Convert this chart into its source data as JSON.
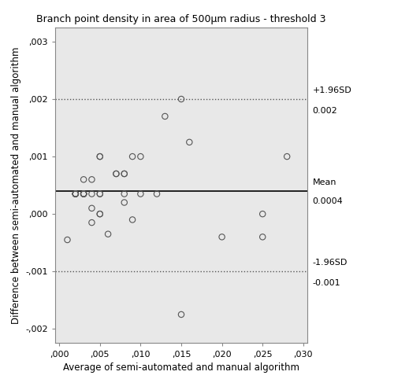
{
  "title": "Branch point density in area of 500μm radius - threshold 3",
  "xlabel": "Average of semi-automated and manual algorithm",
  "ylabel": "Difference between semi-automated and manual algorithm",
  "mean": 0.0004,
  "upper_loa": 0.002,
  "lower_loa": -0.001,
  "xlim": [
    -0.0005,
    0.0305
  ],
  "ylim": [
    -0.00225,
    0.00325
  ],
  "xticks": [
    0.0,
    0.005,
    0.01,
    0.015,
    0.02,
    0.025,
    0.03
  ],
  "yticks": [
    -0.002,
    -0.001,
    0.0,
    0.001,
    0.002,
    0.003
  ],
  "scatter_x": [
    0.001,
    0.002,
    0.002,
    0.002,
    0.002,
    0.002,
    0.003,
    0.003,
    0.003,
    0.003,
    0.003,
    0.003,
    0.004,
    0.004,
    0.004,
    0.004,
    0.005,
    0.005,
    0.005,
    0.005,
    0.005,
    0.005,
    0.006,
    0.007,
    0.007,
    0.008,
    0.008,
    0.008,
    0.008,
    0.009,
    0.009,
    0.01,
    0.01,
    0.012,
    0.013,
    0.015,
    0.015,
    0.016,
    0.02,
    0.025,
    0.025,
    0.028
  ],
  "scatter_y": [
    -0.00045,
    0.00035,
    0.00035,
    0.00035,
    0.00035,
    0.00035,
    0.00035,
    0.00035,
    0.00035,
    0.00035,
    0.00035,
    0.0006,
    0.0006,
    0.00035,
    0.0001,
    -0.00015,
    0.001,
    0.001,
    0.00035,
    0.00035,
    0.0,
    0.0,
    -0.00035,
    0.0007,
    0.0007,
    0.0007,
    0.0007,
    0.00035,
    0.0002,
    0.001,
    -0.0001,
    0.00035,
    0.001,
    0.00035,
    0.0017,
    0.002,
    -0.00175,
    0.00125,
    -0.0004,
    0.0,
    -0.0004,
    0.001
  ],
  "label_upper": "+1.96SD",
  "label_upper_val": "0.002",
  "label_mean": "Mean",
  "label_mean_val": "0.0004",
  "label_lower": "-1.96SD",
  "label_lower_val": "-0.001",
  "plot_bg_color": "#e8e8e8",
  "fig_bg_color": "#ffffff",
  "line_color": "#555555",
  "mean_line_color": "#000000",
  "scatter_face_color": "none",
  "scatter_edge_color": "#555555"
}
